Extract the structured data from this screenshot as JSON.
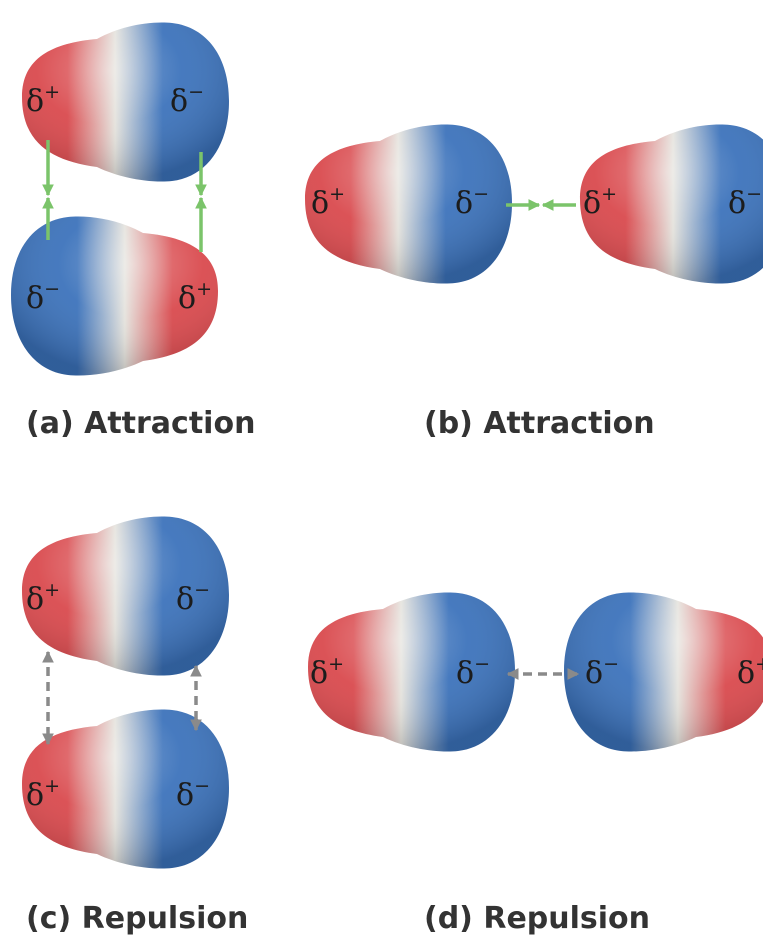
{
  "colors": {
    "positive_end": "#d9484c",
    "neutral_middle": "#e4e2dc",
    "negative_end": "#3b72bb",
    "attraction_arrow": "#7bc46a",
    "repulsion_arrow": "#8a8a8a",
    "caption_text": "#333333"
  },
  "charges": {
    "positive": {
      "symbol": "δ",
      "sign": "+"
    },
    "negative": {
      "symbol": "δ",
      "sign": "−"
    }
  },
  "panels": [
    {
      "id": "a",
      "caption": "(a) Attraction",
      "arrangement": "antiparallel, stacked vertically",
      "arrow_type": "attraction"
    },
    {
      "id": "b",
      "caption": "(b) Attraction",
      "arrangement": "head-to-tail, side by side",
      "arrow_type": "attraction"
    },
    {
      "id": "c",
      "caption": "(c) Repulsion",
      "arrangement": "parallel, stacked vertically",
      "arrow_type": "repulsion"
    },
    {
      "id": "d",
      "caption": "(d) Repulsion",
      "arrangement": "negative end to negative end, side by side",
      "arrow_type": "repulsion"
    }
  ]
}
